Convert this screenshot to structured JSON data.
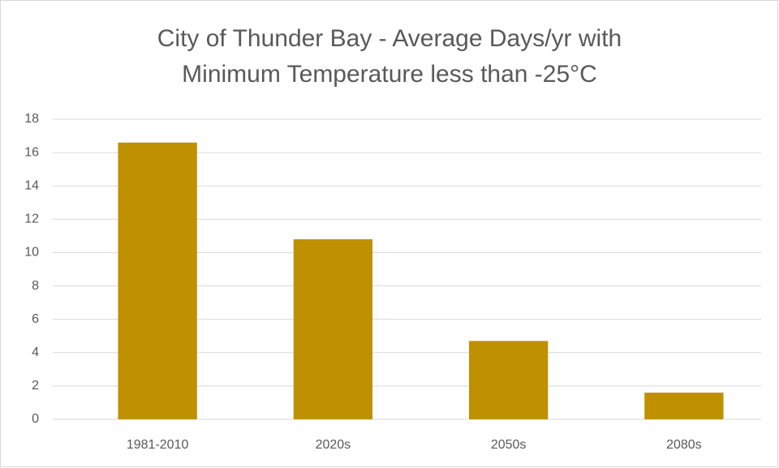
{
  "chart_data": {
    "type": "bar",
    "title": "City of Thunder Bay - Average Days/yr with Minimum Temperature less than -25°C",
    "categories": [
      "1981-2010",
      "2020s",
      "2050s",
      "2080s"
    ],
    "values": [
      16.6,
      10.8,
      4.7,
      1.6
    ],
    "color": "#bf9000",
    "ylim": [
      0,
      18
    ],
    "yticks": [
      0,
      2,
      4,
      6,
      8,
      10,
      12,
      14,
      16,
      18
    ],
    "grid": true
  }
}
